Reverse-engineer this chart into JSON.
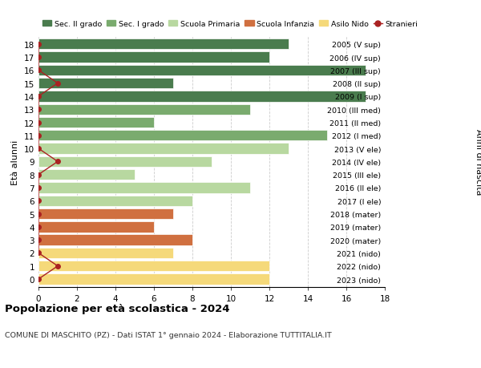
{
  "ages": [
    18,
    17,
    16,
    15,
    14,
    13,
    12,
    11,
    10,
    9,
    8,
    7,
    6,
    5,
    4,
    3,
    2,
    1,
    0
  ],
  "years": [
    "2005 (V sup)",
    "2006 (IV sup)",
    "2007 (III sup)",
    "2008 (II sup)",
    "2009 (I sup)",
    "2010 (III med)",
    "2011 (II med)",
    "2012 (I med)",
    "2013 (V ele)",
    "2014 (IV ele)",
    "2015 (III ele)",
    "2016 (II ele)",
    "2017 (I ele)",
    "2018 (mater)",
    "2019 (mater)",
    "2020 (mater)",
    "2021 (nido)",
    "2022 (nido)",
    "2023 (nido)"
  ],
  "bar_values": [
    13,
    12,
    17,
    7,
    17,
    11,
    6,
    15,
    13,
    9,
    5,
    11,
    8,
    7,
    6,
    8,
    7,
    12,
    12
  ],
  "bar_colors": [
    "#4a7c4e",
    "#4a7c4e",
    "#4a7c4e",
    "#4a7c4e",
    "#4a7c4e",
    "#7aab6e",
    "#7aab6e",
    "#7aab6e",
    "#b8d8a0",
    "#b8d8a0",
    "#b8d8a0",
    "#b8d8a0",
    "#b8d8a0",
    "#d07040",
    "#d07040",
    "#d07040",
    "#f5d97a",
    "#f5d97a",
    "#f5d97a"
  ],
  "stranieri_ages": [
    18,
    17,
    16,
    15,
    14,
    13,
    12,
    11,
    10,
    9,
    8,
    7,
    6,
    5,
    4,
    3,
    2,
    1,
    0
  ],
  "stranieri_values": [
    0,
    0,
    0,
    1,
    0,
    0,
    0,
    0,
    0,
    1,
    0,
    0,
    0,
    0,
    0,
    0,
    0,
    1,
    0
  ],
  "colors": {
    "sec2": "#4a7c4e",
    "sec1": "#7aab6e",
    "primaria": "#b8d8a0",
    "infanzia": "#d07040",
    "nido": "#f5d97a",
    "stranieri": "#aa2222"
  },
  "legend_labels": [
    "Sec. II grado",
    "Sec. I grado",
    "Scuola Primaria",
    "Scuola Infanzia",
    "Asilo Nido",
    "Stranieri"
  ],
  "title": "Popolazione per età scolastica - 2024",
  "subtitle": "COMUNE DI MASCHITO (PZ) - Dati ISTAT 1° gennaio 2024 - Elaborazione TUTTITALIA.IT",
  "xlabel_right": "Anni di nascita",
  "ylabel": "Età alunni",
  "xlim": [
    0,
    18
  ],
  "xticks": [
    0,
    2,
    4,
    6,
    8,
    10,
    12,
    14,
    16,
    18
  ]
}
